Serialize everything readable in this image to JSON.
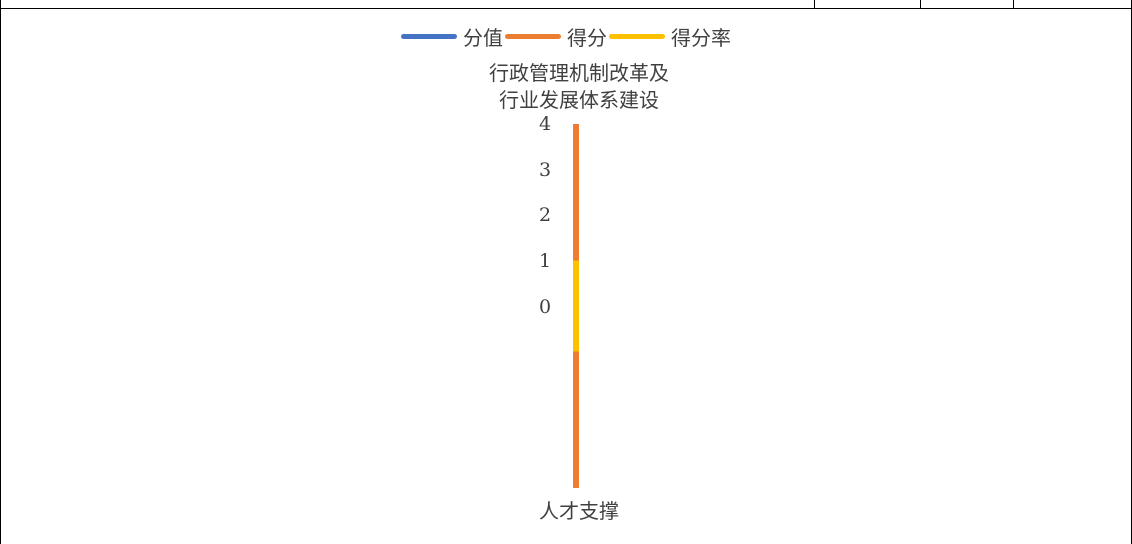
{
  "chart_data": {
    "type": "radar",
    "categories": [
      "行政管理机制改革及\n行业发展体系建设",
      "人才支撑"
    ],
    "category_lines": [
      [
        "行政管理机制改革及",
        "行业发展体系建设"
      ],
      [
        "人才支撑"
      ]
    ],
    "radial_ticks": [
      "4",
      "3",
      "2",
      "1",
      "0"
    ],
    "rlim": [
      0,
      4
    ],
    "series": [
      {
        "name": "分值",
        "color": "#4472C4",
        "values": [
          4,
          4
        ]
      },
      {
        "name": "得分",
        "color": "#ED7D31",
        "values": [
          4,
          4
        ]
      },
      {
        "name": "得分率",
        "color": "#FFC000",
        "values": [
          1,
          1
        ]
      }
    ],
    "legend_position": "top"
  }
}
